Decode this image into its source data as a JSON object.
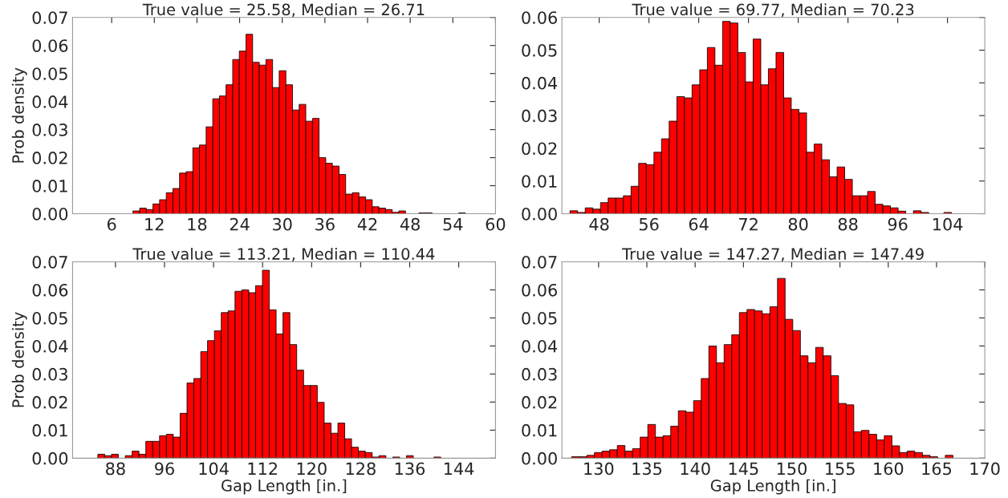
{
  "chart_data": [
    {
      "type": "histogram",
      "title": "True value = 25.58, Median = 26.71",
      "ylabel": "Prob density",
      "color": "#ff0000",
      "bins": [
        9.0,
        9.94,
        10.87,
        11.81,
        12.74,
        13.68,
        14.61,
        15.55,
        16.48,
        17.42,
        18.35,
        19.29,
        20.22,
        21.16,
        22.09,
        23.03,
        23.96,
        24.9,
        25.83,
        26.77,
        27.7,
        28.64,
        29.57,
        30.51,
        31.44,
        32.38,
        33.31,
        34.25,
        35.18,
        36.12,
        37.05,
        37.99,
        38.92,
        39.86,
        40.79,
        41.73,
        42.66,
        43.6,
        44.53,
        45.47,
        46.4,
        47.34,
        48.27,
        49.21,
        50.14,
        51.08,
        52.01,
        52.95,
        53.88,
        54.82,
        55.75
      ],
      "values": [
        0.001,
        0.002,
        0.0015,
        0.0035,
        0.005,
        0.0075,
        0.009,
        0.0145,
        0.015,
        0.0235,
        0.0245,
        0.031,
        0.041,
        0.042,
        0.046,
        0.055,
        0.058,
        0.064,
        0.054,
        0.053,
        0.055,
        0.045,
        0.051,
        0.046,
        0.037,
        0.039,
        0.033,
        0.034,
        0.02,
        0.018,
        0.017,
        0.014,
        0.007,
        0.0075,
        0.006,
        0.005,
        0.0025,
        0.002,
        0.0015,
        0.0005,
        0.001,
        0,
        0,
        0.0003,
        0.0003,
        0,
        0,
        0,
        0,
        0.0003
      ],
      "xlim": [
        0.5,
        60
      ],
      "xticks": [
        6,
        12,
        18,
        24,
        30,
        36,
        42,
        48,
        54,
        60
      ],
      "ylim": [
        0,
        0.07
      ],
      "yticks": [
        {
          "value": 0,
          "label": "0.00"
        },
        {
          "value": 0.01,
          "label": "0.01"
        },
        {
          "value": 0.02,
          "label": "0.02"
        },
        {
          "value": 0.03,
          "label": "0.03"
        },
        {
          "value": 0.04,
          "label": "0.04"
        },
        {
          "value": 0.05,
          "label": "0.05"
        },
        {
          "value": 0.06,
          "label": "0.06"
        },
        {
          "value": 0.07,
          "label": "0.07"
        }
      ]
    },
    {
      "type": "histogram",
      "title": "True value = 69.77, Median = 70.23",
      "color": "#ff0000",
      "bins": [
        43.3,
        44.53,
        45.75,
        46.98,
        48.21,
        49.44,
        50.66,
        51.89,
        53.12,
        54.34,
        55.57,
        56.8,
        58.02,
        59.25,
        60.48,
        61.71,
        62.93,
        64.16,
        65.39,
        66.61,
        67.84,
        69.07,
        70.29,
        71.52,
        72.75,
        73.98,
        75.2,
        76.43,
        77.66,
        78.88,
        80.11,
        81.34,
        82.56,
        83.79,
        85.02,
        86.25,
        87.47,
        88.7,
        89.93,
        91.15,
        92.38,
        93.61,
        94.83,
        96.06,
        97.29,
        98.52,
        99.74,
        100.97,
        102.2,
        103.42,
        104.65
      ],
      "values": [
        0.0009,
        0.0004,
        0.0018,
        0.0014,
        0.0034,
        0.0048,
        0.0048,
        0.0055,
        0.0084,
        0.0154,
        0.015,
        0.0188,
        0.0229,
        0.0283,
        0.0358,
        0.0354,
        0.0394,
        0.044,
        0.0508,
        0.0454,
        0.0588,
        0.0583,
        0.0493,
        0.0403,
        0.0534,
        0.0394,
        0.0443,
        0.0493,
        0.0354,
        0.0319,
        0.0308,
        0.0188,
        0.0213,
        0.0165,
        0.0113,
        0.0143,
        0.0105,
        0.0055,
        0.0055,
        0.0068,
        0.0029,
        0.0024,
        0.0018,
        0.0008,
        0,
        0.0009,
        0.0004,
        0,
        0,
        0.0004
      ],
      "xlim": [
        42,
        110
      ],
      "xticks": [
        48,
        56,
        64,
        72,
        80,
        88,
        96,
        104
      ],
      "ylim": [
        0,
        0.06
      ],
      "yticks": [
        {
          "value": 0,
          "label": "0.00"
        },
        {
          "value": 0.01,
          "label": "0.01"
        },
        {
          "value": 0.02,
          "label": "0.02"
        },
        {
          "value": 0.03,
          "label": "0.03"
        },
        {
          "value": 0.04,
          "label": "0.04"
        },
        {
          "value": 0.05,
          "label": "0.05"
        },
        {
          "value": 0.06,
          "label": "0.06"
        }
      ]
    },
    {
      "type": "histogram",
      "title": "True value = 113.21, Median = 110.44",
      "ylabel": "Prob density",
      "xlabel": "Gap Length [in.]",
      "color": "#ff0000",
      "bins": [
        85.12,
        86.24,
        87.36,
        88.48,
        89.6,
        90.72,
        91.83,
        92.95,
        94.07,
        95.19,
        96.31,
        97.43,
        98.55,
        99.67,
        100.79,
        101.91,
        103.02,
        104.14,
        105.26,
        106.38,
        107.5,
        108.62,
        109.74,
        110.86,
        111.98,
        113.1,
        114.21,
        115.33,
        116.45,
        117.57,
        118.69,
        119.81,
        120.93,
        122.05,
        123.17,
        124.29,
        125.4,
        126.52,
        127.64,
        128.76,
        129.88,
        131.0,
        132.12,
        133.24,
        134.36,
        135.48,
        136.59,
        137.71,
        138.83,
        139.95,
        141.07
      ],
      "values": [
        0.0014,
        0.0009,
        0.0014,
        0,
        0.0009,
        0.0025,
        0.0014,
        0.006,
        0.006,
        0.008,
        0.0085,
        0.0075,
        0.016,
        0.0268,
        0.0284,
        0.038,
        0.0419,
        0.0454,
        0.0519,
        0.0525,
        0.0595,
        0.06,
        0.059,
        0.0615,
        0.067,
        0.0529,
        0.0443,
        0.0519,
        0.0405,
        0.0314,
        0.0259,
        0.0259,
        0.0199,
        0.0125,
        0.0089,
        0.0125,
        0.0069,
        0.0039,
        0.0025,
        0.002,
        0.0004,
        0.0009,
        0,
        0.0004,
        0,
        0.0009,
        0,
        0,
        0,
        0.0004
      ],
      "xlim": [
        81,
        150
      ],
      "xticks": [
        88,
        96,
        104,
        112,
        120,
        128,
        136,
        144
      ],
      "ylim": [
        0,
        0.07
      ],
      "yticks": [
        {
          "value": 0,
          "label": "0.00"
        },
        {
          "value": 0.01,
          "label": "0.01"
        },
        {
          "value": 0.02,
          "label": "0.02"
        },
        {
          "value": 0.03,
          "label": "0.03"
        },
        {
          "value": 0.04,
          "label": "0.04"
        },
        {
          "value": 0.05,
          "label": "0.05"
        },
        {
          "value": 0.06,
          "label": "0.06"
        },
        {
          "value": 0.07,
          "label": "0.07"
        }
      ]
    },
    {
      "type": "histogram",
      "title": "True value = 147.27, Median = 147.49",
      "xlabel": "Gap Length [in.]",
      "color": "#ff0000",
      "bins": [
        127.2,
        127.99,
        128.78,
        129.57,
        130.36,
        131.15,
        131.94,
        132.73,
        133.52,
        134.31,
        135.1,
        135.89,
        136.68,
        137.47,
        138.26,
        139.05,
        139.84,
        140.63,
        141.42,
        142.21,
        143.0,
        143.79,
        144.58,
        145.37,
        146.16,
        146.95,
        147.74,
        148.53,
        149.32,
        150.11,
        150.9,
        151.69,
        152.48,
        153.27,
        154.06,
        154.85,
        155.64,
        156.43,
        157.22,
        158.01,
        158.8,
        159.59,
        160.38,
        161.17,
        161.96,
        162.75,
        163.54,
        164.33,
        165.12,
        165.91,
        166.7
      ],
      "values": [
        0.0005,
        0.0005,
        0.001,
        0.002,
        0.0025,
        0.003,
        0.0045,
        0.0025,
        0.0034,
        0.0075,
        0.012,
        0.0075,
        0.008,
        0.0114,
        0.0169,
        0.0164,
        0.0205,
        0.0284,
        0.04,
        0.034,
        0.0405,
        0.044,
        0.0519,
        0.053,
        0.0525,
        0.0515,
        0.054,
        0.0641,
        0.0495,
        0.0455,
        0.0365,
        0.034,
        0.0395,
        0.0365,
        0.0294,
        0.0195,
        0.019,
        0.0094,
        0.0099,
        0.0085,
        0.0065,
        0.008,
        0.0044,
        0.002,
        0.0025,
        0.002,
        0.001,
        0.0005,
        0,
        0.001
      ],
      "xlim": [
        126.2,
        170
      ],
      "xticks": [
        130,
        135,
        140,
        145,
        150,
        155,
        160,
        165,
        170
      ],
      "ylim": [
        0,
        0.07
      ],
      "yticks": [
        {
          "value": 0,
          "label": "0.00"
        },
        {
          "value": 0.01,
          "label": "0.01"
        },
        {
          "value": 0.02,
          "label": "0.02"
        },
        {
          "value": 0.03,
          "label": "0.03"
        },
        {
          "value": 0.04,
          "label": "0.04"
        },
        {
          "value": 0.05,
          "label": "0.05"
        },
        {
          "value": 0.06,
          "label": "0.06"
        },
        {
          "value": 0.07,
          "label": "0.07"
        }
      ]
    }
  ]
}
